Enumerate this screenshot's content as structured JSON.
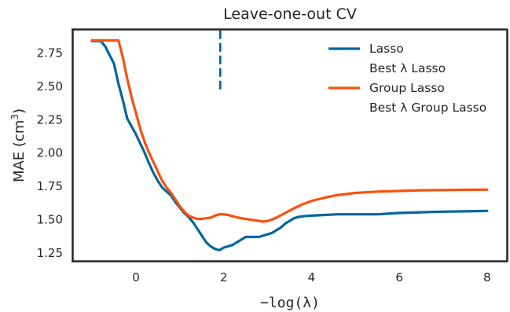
{
  "chart_data": {
    "type": "line",
    "title": "Leave-one-out CV",
    "xlabel": "−log(λ)",
    "ylabel": "MAE (cm³)",
    "xlim": [
      -1.45,
      8.45
    ],
    "ylim": [
      1.19,
      2.93
    ],
    "xticks": [
      0,
      2,
      4,
      6,
      8
    ],
    "xtick_labels": [
      "0",
      "2",
      "4",
      "6",
      "8"
    ],
    "yticks": [
      1.25,
      1.5,
      1.75,
      2.0,
      2.25,
      2.5,
      2.75
    ],
    "ytick_labels": [
      "1.25",
      "1.50",
      "1.75",
      "2.00",
      "2.25",
      "2.50",
      "2.75"
    ],
    "grid": false,
    "legend_position": "top-right",
    "series": [
      {
        "name": "Lasso",
        "color": "#03679b",
        "x": [
          -1.0,
          -0.8,
          -0.7,
          -0.5,
          -0.4,
          -0.3,
          -0.2,
          -0.1,
          0.0,
          0.1,
          0.2,
          0.3,
          0.4,
          0.5,
          0.6,
          0.7,
          0.8,
          0.9,
          1.0,
          1.1,
          1.2,
          1.3,
          1.4,
          1.5,
          1.6,
          1.7,
          1.8,
          1.9,
          2.0,
          2.1,
          2.2,
          2.3,
          2.4,
          2.5,
          2.6,
          2.7,
          2.8,
          2.9,
          3.0,
          3.1,
          3.2,
          3.3,
          3.4,
          3.5,
          3.6,
          3.7,
          3.8,
          4.0,
          4.3,
          4.6,
          5.0,
          5.5,
          6.0,
          6.5,
          7.0,
          7.5,
          8.0
        ],
        "y": [
          2.84,
          2.84,
          2.8,
          2.67,
          2.52,
          2.4,
          2.26,
          2.2,
          2.14,
          2.07,
          2.0,
          1.92,
          1.85,
          1.79,
          1.74,
          1.71,
          1.68,
          1.63,
          1.59,
          1.55,
          1.52,
          1.48,
          1.43,
          1.38,
          1.33,
          1.3,
          1.28,
          1.27,
          1.29,
          1.3,
          1.31,
          1.33,
          1.35,
          1.37,
          1.37,
          1.37,
          1.37,
          1.38,
          1.39,
          1.4,
          1.42,
          1.44,
          1.47,
          1.49,
          1.51,
          1.52,
          1.525,
          1.53,
          1.535,
          1.54,
          1.54,
          1.54,
          1.55,
          1.555,
          1.56,
          1.562,
          1.565
        ]
      },
      {
        "name": "Group Lasso",
        "color": "#f8510e",
        "x": [
          -1.0,
          -0.8,
          -0.6,
          -0.5,
          -0.45,
          -0.4,
          -0.3,
          -0.2,
          -0.1,
          0.0,
          0.1,
          0.2,
          0.3,
          0.4,
          0.5,
          0.6,
          0.7,
          0.8,
          0.9,
          1.0,
          1.1,
          1.2,
          1.3,
          1.4,
          1.5,
          1.6,
          1.7,
          1.8,
          1.9,
          2.0,
          2.1,
          2.2,
          2.4,
          2.6,
          2.8,
          2.9,
          3.0,
          3.1,
          3.2,
          3.4,
          3.6,
          3.8,
          4.0,
          4.3,
          4.6,
          5.0,
          5.5,
          6.0,
          6.5,
          7.0,
          7.5,
          8.0
        ],
        "y": [
          2.845,
          2.845,
          2.845,
          2.845,
          2.845,
          2.845,
          2.72,
          2.56,
          2.42,
          2.3,
          2.18,
          2.08,
          2.0,
          1.93,
          1.86,
          1.79,
          1.74,
          1.7,
          1.65,
          1.6,
          1.56,
          1.53,
          1.515,
          1.505,
          1.505,
          1.51,
          1.515,
          1.53,
          1.54,
          1.54,
          1.535,
          1.525,
          1.51,
          1.5,
          1.49,
          1.485,
          1.49,
          1.5,
          1.515,
          1.55,
          1.585,
          1.615,
          1.64,
          1.665,
          1.685,
          1.7,
          1.71,
          1.715,
          1.72,
          1.722,
          1.724,
          1.725
        ]
      }
    ],
    "best_lambda": {
      "name": "Best λ Lasso",
      "x": 1.92,
      "y_range": [
        2.47,
        2.92
      ],
      "color": "#03679b"
    },
    "legend": [
      {
        "label": "Lasso",
        "kind": "line",
        "color": "#03679b"
      },
      {
        "label": "Best λ Lasso",
        "kind": "none",
        "color": "#03679b"
      },
      {
        "label": "Group Lasso",
        "kind": "line",
        "color": "#f8510e"
      },
      {
        "label": "Best λ Group Lasso",
        "kind": "none",
        "color": "#f8510e"
      }
    ]
  }
}
